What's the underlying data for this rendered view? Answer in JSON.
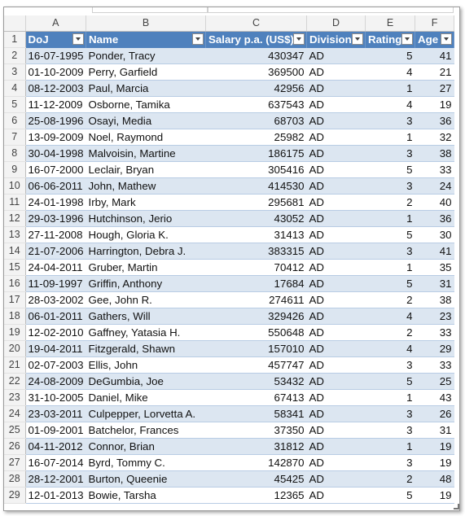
{
  "column_letters": [
    "A",
    "B",
    "C",
    "D",
    "E",
    "F"
  ],
  "header_row_number": "1",
  "headers": [
    "DoJ",
    "Name",
    "Salary p.a. (US$)",
    "Division",
    "Rating",
    "Age"
  ],
  "rows": [
    {
      "n": "2",
      "doj": "16-07-1995",
      "name": "Ponder, Tracy",
      "salary": "430347",
      "division": "AD",
      "rating": "5",
      "age": "41"
    },
    {
      "n": "3",
      "doj": "01-10-2009",
      "name": "Perry, Garfield",
      "salary": "369500",
      "division": "AD",
      "rating": "4",
      "age": "21"
    },
    {
      "n": "4",
      "doj": "08-12-2003",
      "name": "Paul, Marcia",
      "salary": "42956",
      "division": "AD",
      "rating": "1",
      "age": "27"
    },
    {
      "n": "5",
      "doj": "11-12-2009",
      "name": "Osborne, Tamika",
      "salary": "637543",
      "division": "AD",
      "rating": "4",
      "age": "19"
    },
    {
      "n": "6",
      "doj": "25-08-1996",
      "name": "Osayi, Media",
      "salary": "68703",
      "division": "AD",
      "rating": "3",
      "age": "36"
    },
    {
      "n": "7",
      "doj": "13-09-2009",
      "name": "Noel, Raymond",
      "salary": "25982",
      "division": "AD",
      "rating": "1",
      "age": "32"
    },
    {
      "n": "8",
      "doj": "30-04-1998",
      "name": "Malvoisin, Martine",
      "salary": "186175",
      "division": "AD",
      "rating": "3",
      "age": "38"
    },
    {
      "n": "9",
      "doj": "16-07-2000",
      "name": "Leclair, Bryan",
      "salary": "305416",
      "division": "AD",
      "rating": "5",
      "age": "33"
    },
    {
      "n": "10",
      "doj": "06-06-2011",
      "name": "John, Mathew",
      "salary": "414530",
      "division": "AD",
      "rating": "3",
      "age": "24"
    },
    {
      "n": "11",
      "doj": "24-01-1998",
      "name": "Irby, Mark",
      "salary": "295681",
      "division": "AD",
      "rating": "2",
      "age": "40"
    },
    {
      "n": "12",
      "doj": "29-03-1996",
      "name": "Hutchinson, Jerio",
      "salary": "43052",
      "division": "AD",
      "rating": "1",
      "age": "36"
    },
    {
      "n": "13",
      "doj": "27-11-2008",
      "name": "Hough, Gloria K.",
      "salary": "31413",
      "division": "AD",
      "rating": "5",
      "age": "30"
    },
    {
      "n": "14",
      "doj": "21-07-2006",
      "name": "Harrington, Debra J.",
      "salary": "383315",
      "division": "AD",
      "rating": "3",
      "age": "41"
    },
    {
      "n": "15",
      "doj": "24-04-2011",
      "name": "Gruber, Martin",
      "salary": "70412",
      "division": "AD",
      "rating": "1",
      "age": "35"
    },
    {
      "n": "16",
      "doj": "11-09-1997",
      "name": "Griffin, Anthony",
      "salary": "17684",
      "division": "AD",
      "rating": "5",
      "age": "31"
    },
    {
      "n": "17",
      "doj": "28-03-2002",
      "name": "Gee, John R.",
      "salary": "274611",
      "division": "AD",
      "rating": "2",
      "age": "38"
    },
    {
      "n": "18",
      "doj": "06-01-2011",
      "name": "Gathers, Will",
      "salary": "329426",
      "division": "AD",
      "rating": "4",
      "age": "23"
    },
    {
      "n": "19",
      "doj": "12-02-2010",
      "name": "Gaffney, Yatasia H.",
      "salary": "550648",
      "division": "AD",
      "rating": "2",
      "age": "33"
    },
    {
      "n": "20",
      "doj": "19-04-2011",
      "name": "Fitzgerald, Shawn",
      "salary": "157010",
      "division": "AD",
      "rating": "4",
      "age": "29"
    },
    {
      "n": "21",
      "doj": "02-07-2003",
      "name": "Ellis, John",
      "salary": "457747",
      "division": "AD",
      "rating": "3",
      "age": "33"
    },
    {
      "n": "22",
      "doj": "24-08-2009",
      "name": "DeGumbia, Joe",
      "salary": "53432",
      "division": "AD",
      "rating": "5",
      "age": "25"
    },
    {
      "n": "23",
      "doj": "31-10-2005",
      "name": "Daniel, Mike",
      "salary": "67413",
      "division": "AD",
      "rating": "1",
      "age": "43"
    },
    {
      "n": "24",
      "doj": "23-03-2011",
      "name": "Culpepper, Lorvetta A.",
      "salary": "58341",
      "division": "AD",
      "rating": "3",
      "age": "26"
    },
    {
      "n": "25",
      "doj": "01-09-2001",
      "name": "Batchelor, Frances",
      "salary": "37350",
      "division": "AD",
      "rating": "3",
      "age": "31"
    },
    {
      "n": "26",
      "doj": "04-11-2012",
      "name": "Connor, Brian",
      "salary": "31812",
      "division": "AD",
      "rating": "1",
      "age": "19"
    },
    {
      "n": "27",
      "doj": "16-07-2014",
      "name": "Byrd, Tommy C.",
      "salary": "142870",
      "division": "AD",
      "rating": "3",
      "age": "19"
    },
    {
      "n": "28",
      "doj": "28-12-2001",
      "name": "Burton, Queenie",
      "salary": "45425",
      "division": "AD",
      "rating": "2",
      "age": "48"
    },
    {
      "n": "29",
      "doj": "12-01-2013",
      "name": "Bowie, Tarsha",
      "salary": "12365",
      "division": "AD",
      "rating": "5",
      "age": "19"
    }
  ],
  "colors": {
    "header_fill": "#4f81bd",
    "band_fill": "#dce6f1",
    "header_text": "#ffffff"
  }
}
